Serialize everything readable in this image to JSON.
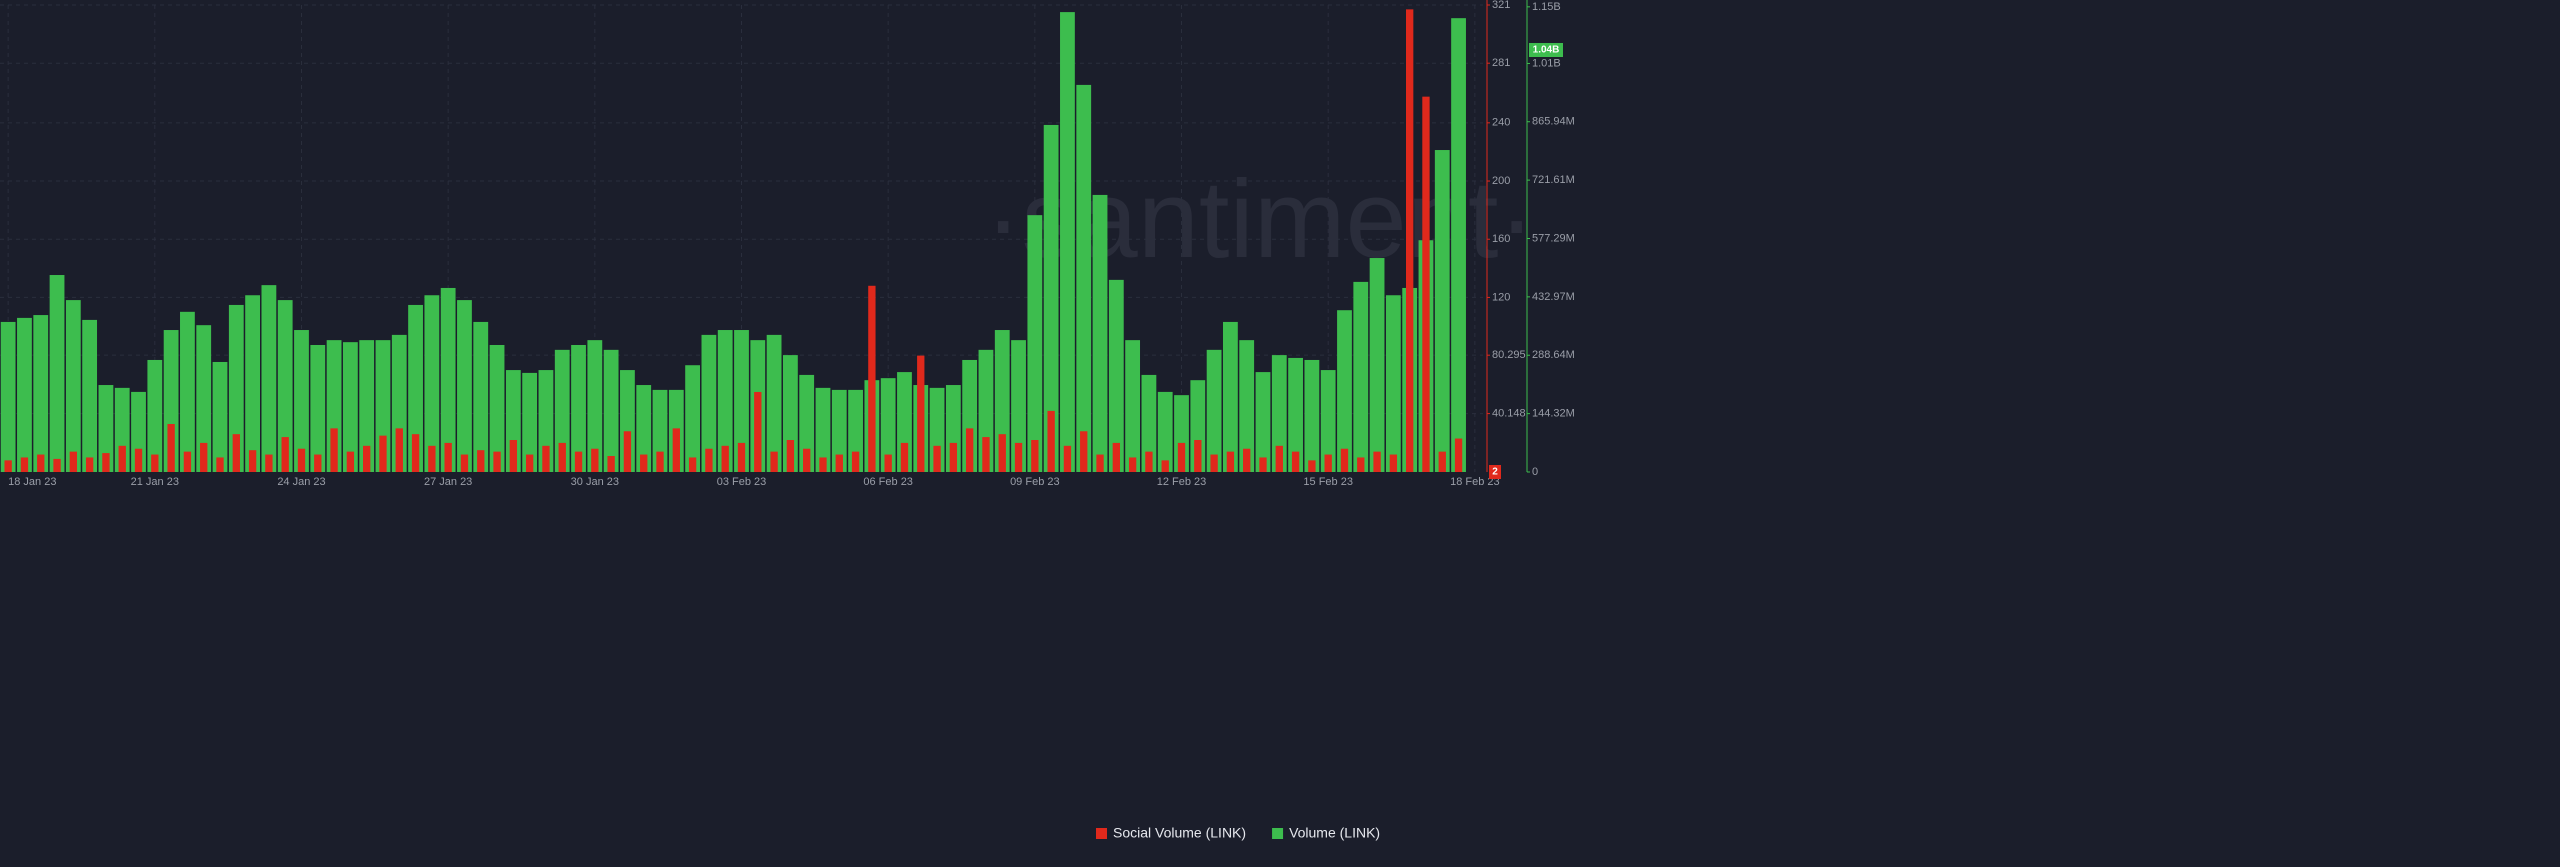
{
  "chart_data": {
    "type": "bar",
    "watermark": "·santiment·",
    "categories": [
      "18 Jan 23",
      null,
      null,
      null,
      null,
      null,
      null,
      null,
      null,
      "21 Jan 23",
      null,
      null,
      null,
      null,
      null,
      null,
      null,
      null,
      "24 Jan 23",
      null,
      null,
      null,
      null,
      null,
      null,
      null,
      null,
      "27 Jan 23",
      null,
      null,
      null,
      null,
      null,
      null,
      null,
      null,
      "30 Jan 23",
      null,
      null,
      null,
      null,
      null,
      null,
      null,
      null,
      "03 Feb 23",
      null,
      null,
      null,
      null,
      null,
      null,
      null,
      null,
      "06 Feb 23",
      null,
      null,
      null,
      null,
      null,
      null,
      null,
      null,
      "09 Feb 23",
      null,
      null,
      null,
      null,
      null,
      null,
      null,
      null,
      "12 Feb 23",
      null,
      null,
      null,
      null,
      null,
      null,
      null,
      null,
      "15 Feb 23",
      null,
      null,
      null,
      null,
      null,
      null,
      null,
      null,
      "18 Feb 23"
    ],
    "series": [
      {
        "name": "Volume (LINK)",
        "color": "#3dbd4e",
        "axis": "y2",
        "badge": "1.04B",
        "values": [
          371000000,
          381000000,
          388000000,
          487000000,
          425000000,
          376000000,
          215000000,
          208000000,
          198000000,
          277000000,
          351000000,
          396000000,
          363000000,
          272000000,
          413000000,
          437000000,
          462000000,
          425000000,
          351000000,
          314000000,
          326000000,
          321000000,
          326000000,
          326000000,
          339000000,
          413000000,
          437000000,
          455000000,
          425000000,
          371000000,
          314000000,
          252000000,
          245000000,
          252000000,
          302000000,
          314000000,
          326000000,
          302000000,
          252000000,
          215000000,
          203000000,
          203000000,
          264000000,
          339000000,
          351000000,
          351000000,
          326000000,
          339000000,
          289000000,
          240000000,
          208000000,
          203000000,
          203000000,
          227000000,
          232000000,
          247000000,
          215000000,
          208000000,
          215000000,
          277000000,
          302000000,
          351000000,
          326000000,
          635000000,
          858000000,
          1137000000,
          957000000,
          685000000,
          475000000,
          326000000,
          240000000,
          198000000,
          190000000,
          227000000,
          302000000,
          371000000,
          326000000,
          247000000,
          289000000,
          282000000,
          277000000,
          252000000,
          400000000,
          470000000,
          529000000,
          437000000,
          455000000,
          573000000,
          796000000,
          1122000000,
          null
        ]
      },
      {
        "name": "Social Volume (LINK)",
        "color": "#e0291c",
        "badge": "2",
        "values": [
          8,
          10,
          12,
          9,
          14,
          10,
          13,
          18,
          16,
          12,
          33,
          14,
          20,
          10,
          26,
          15,
          12,
          24,
          16,
          12,
          30,
          14,
          18,
          25,
          30,
          26,
          18,
          20,
          12,
          15,
          14,
          22,
          12,
          18,
          20,
          14,
          16,
          11,
          28,
          12,
          14,
          30,
          10,
          16,
          18,
          20,
          55,
          14,
          22,
          16,
          10,
          12,
          14,
          128,
          12,
          20,
          80,
          18,
          20,
          30,
          24,
          26,
          20,
          22,
          42,
          18,
          28,
          12,
          20,
          10,
          14,
          8,
          20,
          22,
          12,
          14,
          16,
          10,
          18,
          14,
          8,
          12,
          16,
          10,
          14,
          12,
          318,
          258,
          14,
          23,
          null
        ]
      }
    ],
    "ylim": [
      0,
      321
    ],
    "yticks": [
      40.148,
      80.295,
      120,
      160,
      200,
      240,
      281,
      321
    ],
    "y2lim": [
      0,
      1154560000
    ],
    "y2ticks": [
      0,
      {
        "value": 144320000,
        "label": "144.32M"
      },
      {
        "value": 288640000,
        "label": "288.64M"
      },
      {
        "value": 432970000,
        "label": "432.97M"
      },
      {
        "value": 577290000,
        "label": "577.29M"
      },
      {
        "value": 721610000,
        "label": "721.61M"
      },
      {
        "value": 865940000,
        "label": "865.94M"
      },
      {
        "value": 1010000000,
        "label": "1.01B"
      },
      {
        "value": 1150000000,
        "label": "1.15B"
      }
    ],
    "grid": true,
    "legend": "bottom"
  }
}
